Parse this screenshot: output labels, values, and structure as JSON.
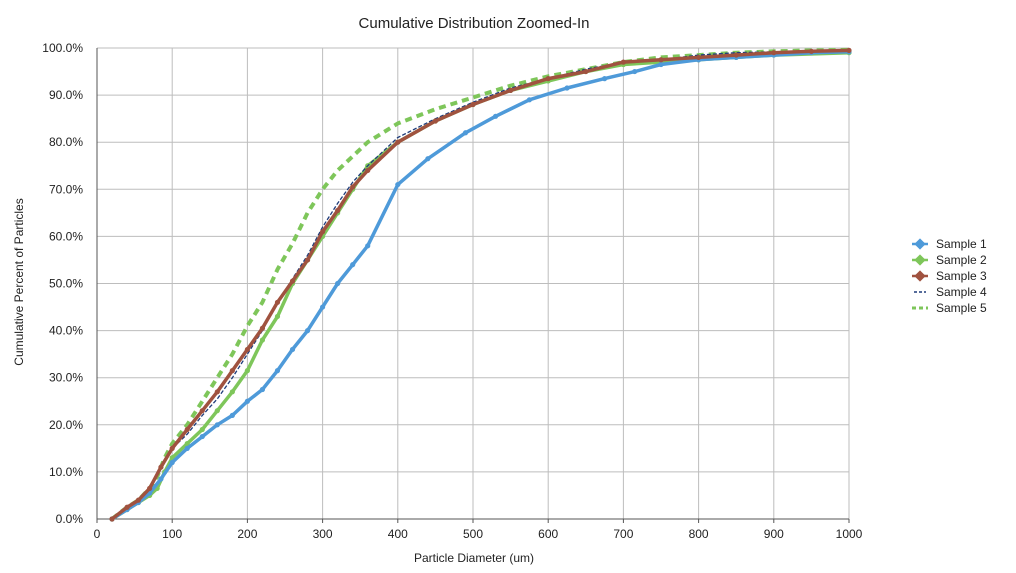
{
  "chart_data": {
    "type": "line",
    "title": "Cumulative Distribution Zoomed-In",
    "xlabel": "Particle Diameter (um)",
    "ylabel": "Cumulative Percent of Particles",
    "xlim": [
      0,
      1000
    ],
    "ylim": [
      0,
      100
    ],
    "x_ticks": [
      "0",
      "100",
      "200",
      "300",
      "400",
      "500",
      "600",
      "700",
      "800",
      "900",
      "1000"
    ],
    "y_ticks": [
      "0.0%",
      "10.0%",
      "20.0%",
      "30.0%",
      "40.0%",
      "50.0%",
      "60.0%",
      "70.0%",
      "80.0%",
      "90.0%",
      "100.0%"
    ],
    "grid": true,
    "legend_position": "right",
    "series": [
      {
        "name": "Sample 1",
        "color": "#4e9ad9",
        "style": "solid-marker",
        "x": [
          20,
          40,
          55,
          70,
          85,
          100,
          120,
          140,
          160,
          180,
          200,
          220,
          240,
          260,
          280,
          300,
          320,
          340,
          360,
          400,
          440,
          490,
          530,
          575,
          625,
          675,
          715,
          750,
          800,
          850,
          900,
          950,
          1000
        ],
        "y": [
          0,
          2,
          3.5,
          5.5,
          8.5,
          12,
          15,
          17.5,
          20,
          22,
          25,
          27.5,
          31.5,
          36,
          40,
          45,
          50,
          54,
          58,
          71,
          76.5,
          82,
          85.5,
          89,
          91.5,
          93.5,
          95,
          96.5,
          97.5,
          98,
          98.5,
          99,
          99.2
        ]
      },
      {
        "name": "Sample 2",
        "color": "#7ec65a",
        "style": "solid-marker",
        "x": [
          20,
          40,
          55,
          70,
          80,
          90,
          100,
          120,
          140,
          160,
          180,
          200,
          220,
          240,
          260,
          280,
          300,
          320,
          340,
          360,
          400,
          450,
          500,
          550,
          600,
          650,
          700,
          750,
          800,
          850,
          900,
          1000
        ],
        "y": [
          0,
          2,
          3.5,
          5,
          6.5,
          10,
          13,
          16,
          19,
          23,
          27,
          31.5,
          38,
          43,
          50,
          55,
          60,
          65,
          70,
          75,
          80,
          84.5,
          88,
          91,
          93,
          95,
          96.5,
          97,
          97.5,
          98,
          98.5,
          99
        ]
      },
      {
        "name": "Sample 3",
        "color": "#a0523f",
        "style": "solid-marker",
        "x": [
          20,
          40,
          55,
          70,
          85,
          100,
          120,
          140,
          160,
          180,
          200,
          220,
          240,
          260,
          280,
          300,
          320,
          340,
          360,
          400,
          450,
          500,
          550,
          600,
          650,
          700,
          750,
          800,
          850,
          900,
          950,
          1000
        ],
        "y": [
          0,
          2.5,
          4,
          6.5,
          11,
          15,
          19,
          23,
          27,
          31.5,
          36,
          40.5,
          46,
          50.5,
          55,
          61,
          65.5,
          70.5,
          74,
          80,
          84.5,
          88,
          91,
          93.5,
          95,
          97,
          97.5,
          98,
          98.5,
          99,
          99.3,
          99.5
        ]
      },
      {
        "name": "Sample 4",
        "color": "#1f3c7a",
        "style": "dashed",
        "x": [
          20,
          40,
          55,
          70,
          85,
          100,
          120,
          140,
          160,
          180,
          200,
          220,
          240,
          260,
          280,
          300,
          320,
          340,
          360,
          400,
          450,
          500,
          550,
          600,
          650,
          700,
          750,
          800,
          850,
          900,
          950,
          1000
        ],
        "y": [
          0,
          2.5,
          4,
          6.5,
          11,
          15,
          18,
          22,
          25.5,
          30,
          35,
          40,
          46,
          51,
          56,
          62,
          67,
          71.5,
          75,
          81,
          85,
          88.5,
          91.5,
          93.5,
          95.5,
          97,
          97.5,
          98.5,
          99,
          99.2,
          99.4,
          99.5
        ]
      },
      {
        "name": "Sample 5",
        "color": "#7ec65a",
        "style": "dashed-thick",
        "x": [
          20,
          40,
          55,
          70,
          80,
          90,
          100,
          120,
          140,
          160,
          180,
          200,
          220,
          240,
          260,
          280,
          300,
          320,
          340,
          360,
          400,
          450,
          500,
          550,
          600,
          650,
          700,
          750,
          800,
          850,
          900,
          950,
          1000
        ],
        "y": [
          0,
          2.5,
          4,
          6.5,
          9,
          13,
          16,
          20,
          25,
          30,
          35,
          41,
          46,
          53,
          58.5,
          65,
          70,
          74,
          77,
          80,
          84,
          87,
          89.5,
          92,
          94,
          95.5,
          97,
          98,
          98.5,
          99,
          99.3,
          99.5,
          99.6
        ]
      }
    ]
  }
}
